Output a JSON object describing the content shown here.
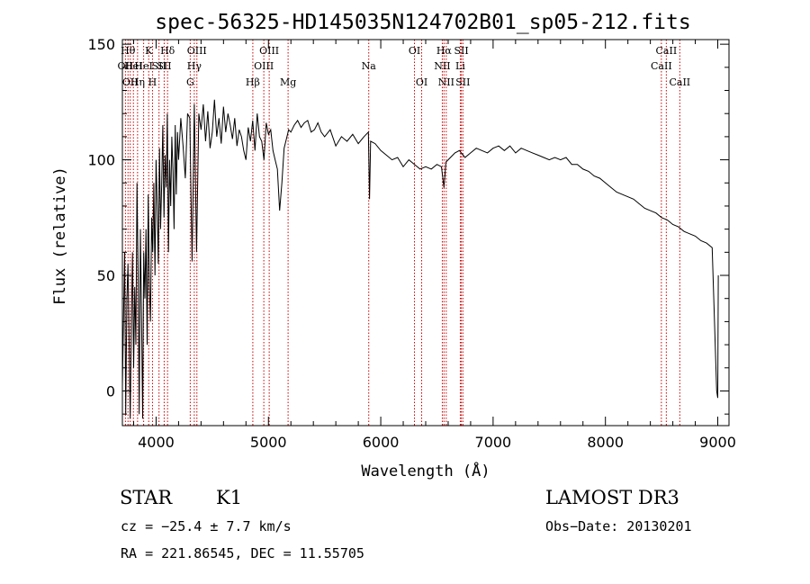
{
  "chart_data": {
    "type": "line",
    "title": "spec-56325-HD145035N124702B01_sp05-212.fits",
    "xlabel": "Wavelength (Å)",
    "ylabel": "Flux (relative)",
    "xlim": [
      3700,
      9100
    ],
    "ylim": [
      -15,
      152
    ],
    "xticks": [
      4000,
      5000,
      6000,
      7000,
      8000,
      9000
    ],
    "yticks": [
      0,
      50,
      100,
      150
    ],
    "grid": false,
    "series": [
      {
        "x": [
          3700,
          3710,
          3720,
          3730,
          3740,
          3750,
          3760,
          3770,
          3780,
          3790,
          3800,
          3810,
          3820,
          3830,
          3840,
          3850,
          3860,
          3870,
          3880,
          3890,
          3900,
          3910,
          3920,
          3930,
          3940,
          3950,
          3960,
          3970,
          3980,
          3990,
          4000,
          4010,
          4020,
          4030,
          4040,
          4050,
          4060,
          4070,
          4080,
          4090,
          4100,
          4110,
          4120,
          4130,
          4140,
          4150,
          4160,
          4170,
          4180,
          4190,
          4200,
          4220,
          4240,
          4260,
          4280,
          4300,
          4320,
          4340,
          4360,
          4380,
          4400,
          4420,
          4440,
          4460,
          4480,
          4500,
          4520,
          4540,
          4560,
          4580,
          4600,
          4620,
          4640,
          4660,
          4680,
          4700,
          4720,
          4740,
          4760,
          4780,
          4800,
          4820,
          4840,
          4860,
          4880,
          4900,
          4920,
          4940,
          4960,
          4980,
          5000,
          5020,
          5040,
          5060,
          5080,
          5100,
          5120,
          5140,
          5160,
          5180,
          5200,
          5230,
          5260,
          5290,
          5320,
          5350,
          5380,
          5410,
          5440,
          5470,
          5500,
          5550,
          5600,
          5650,
          5700,
          5750,
          5800,
          5850,
          5890,
          5900,
          5910,
          5950,
          6000,
          6050,
          6100,
          6150,
          6200,
          6250,
          6300,
          6350,
          6400,
          6450,
          6500,
          6540,
          6563,
          6580,
          6620,
          6660,
          6700,
          6750,
          6800,
          6850,
          6900,
          6950,
          7000,
          7050,
          7100,
          7150,
          7200,
          7250,
          7300,
          7350,
          7400,
          7450,
          7500,
          7550,
          7600,
          7650,
          7700,
          7750,
          7800,
          7850,
          7900,
          7950,
          8000,
          8050,
          8100,
          8150,
          8200,
          8250,
          8300,
          8350,
          8400,
          8450,
          8500,
          8550,
          8600,
          8650,
          8700,
          8750,
          8800,
          8850,
          8900,
          8950,
          8990,
          9000,
          9005
        ],
        "y": [
          2,
          30,
          60,
          -10,
          40,
          55,
          20,
          -12,
          30,
          60,
          10,
          45,
          20,
          90,
          50,
          -10,
          70,
          35,
          -12,
          60,
          40,
          70,
          20,
          85,
          45,
          30,
          75,
          60,
          90,
          50,
          100,
          80,
          55,
          105,
          70,
          90,
          115,
          75,
          102,
          88,
          120,
          60,
          100,
          80,
          110,
          95,
          70,
          115,
          85,
          112,
          100,
          118,
          106,
          92,
          120,
          118,
          56,
          124,
          60,
          120,
          113,
          124,
          108,
          121,
          105,
          112,
          126,
          110,
          118,
          107,
          123,
          112,
          120,
          115,
          109,
          118,
          106,
          113,
          110,
          104,
          100,
          114,
          108,
          117,
          104,
          120,
          110,
          108,
          100,
          116,
          111,
          113,
          104,
          100,
          96,
          78,
          90,
          105,
          109,
          113,
          112,
          115,
          117,
          114,
          116,
          117,
          112,
          113,
          116,
          112,
          110,
          113,
          106,
          110,
          108,
          111,
          107,
          110,
          112,
          83,
          108,
          107,
          104,
          102,
          100,
          101,
          97,
          100,
          98,
          96,
          97,
          96,
          98,
          97,
          88,
          99,
          101,
          103,
          104,
          101,
          103,
          105,
          104,
          103,
          105,
          106,
          104,
          106,
          103,
          105,
          104,
          103,
          102,
          101,
          100,
          101,
          100,
          101,
          98,
          98,
          96,
          95,
          93,
          92,
          90,
          88,
          86,
          85,
          84,
          83,
          81,
          79,
          78,
          77,
          75,
          74,
          72,
          71,
          69,
          68,
          67,
          65,
          64,
          62,
          0,
          -3,
          50
        ]
      }
    ],
    "line_ids": [
      {
        "wl": 3727,
        "label": "OII",
        "row": 1
      },
      {
        "wl": 3750,
        "label": "Hθ",
        "row": 0
      },
      {
        "wl": 3770,
        "label": "OII",
        "row": 2
      },
      {
        "wl": 3798,
        "label": "HeI",
        "row": 1
      },
      {
        "wl": 3835,
        "label": "Hη",
        "row": 2
      },
      {
        "wl": 3889,
        "label": "HeI",
        "row": 1
      },
      {
        "wl": 3934,
        "label": "K",
        "row": 0
      },
      {
        "wl": 3968,
        "label": "H",
        "row": 2
      },
      {
        "wl": 4026,
        "label": "SII",
        "row": 1
      },
      {
        "wl": 4102,
        "label": "Hδ",
        "row": 0
      },
      {
        "wl": 4072,
        "label": "SII",
        "row": 1
      },
      {
        "wl": 4304,
        "label": "G",
        "row": 2
      },
      {
        "wl": 4340,
        "label": "Hγ",
        "row": 1
      },
      {
        "wl": 4363,
        "label": "OIII",
        "row": 0
      },
      {
        "wl": 4861,
        "label": "Hβ",
        "row": 2
      },
      {
        "wl": 4959,
        "label": "OIII",
        "row": 1
      },
      {
        "wl": 5007,
        "label": "OIII",
        "row": 0
      },
      {
        "wl": 5175,
        "label": "Mg",
        "row": 2
      },
      {
        "wl": 5893,
        "label": "Na",
        "row": 1
      },
      {
        "wl": 6300,
        "label": "OI",
        "row": 0
      },
      {
        "wl": 6364,
        "label": "OI",
        "row": 2
      },
      {
        "wl": 6548,
        "label": "NII",
        "row": 1
      },
      {
        "wl": 6563,
        "label": "Hα",
        "row": 0
      },
      {
        "wl": 6583,
        "label": "NII",
        "row": 2
      },
      {
        "wl": 6708,
        "label": "Li",
        "row": 1
      },
      {
        "wl": 6717,
        "label": "SII",
        "row": 0
      },
      {
        "wl": 6731,
        "label": "SII",
        "row": 2
      },
      {
        "wl": 8498,
        "label": "CaII",
        "row": 1
      },
      {
        "wl": 8542,
        "label": "CaII",
        "row": 0
      },
      {
        "wl": 8662,
        "label": "CaII",
        "row": 2
      }
    ],
    "line_color": "#cc0000"
  },
  "info": {
    "class": "STAR",
    "subclass": "K1",
    "survey": "LAMOST DR3",
    "cz": "cz = −25.4 ± 7.7 km/s",
    "obsdate": "Obs−Date: 20130201",
    "radec": "RA = 221.86545, DEC =  11.55705"
  }
}
